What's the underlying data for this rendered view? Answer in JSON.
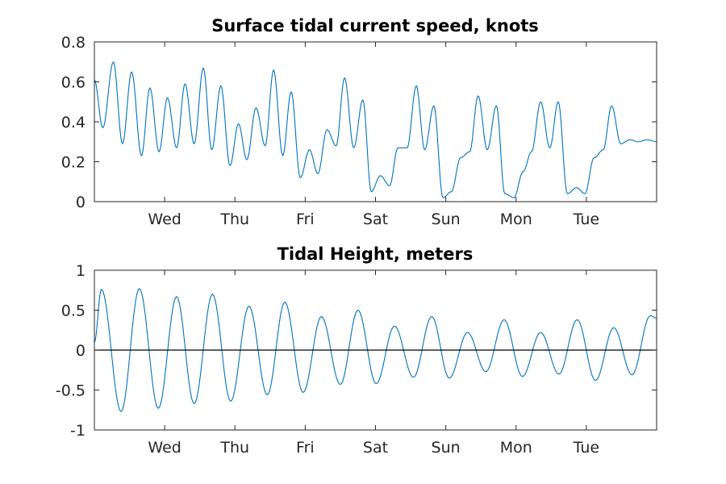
{
  "colors": {
    "series": "#0072bd",
    "axis": "#262626",
    "zero_line": "#000000",
    "background": "#ffffff"
  },
  "chart_data": [
    {
      "type": "line",
      "title": "Surface tidal current speed, knots",
      "xlabel": "",
      "ylabel": "",
      "x_unit": "days since start of record",
      "xlim": [
        0,
        8.0
      ],
      "ylim": [
        0,
        0.8
      ],
      "yticks": [
        0,
        0.2,
        0.4,
        0.6,
        0.8
      ],
      "ytick_labels": [
        "0",
        "0.2",
        "0.4",
        "0.6",
        "0.8"
      ],
      "xticks": [
        1,
        2,
        3,
        4,
        5,
        6,
        7
      ],
      "xtick_labels": [
        "Wed",
        "Thu",
        "Fri",
        "Sat",
        "Sun",
        "Mon",
        "Tue"
      ],
      "grid": false,
      "series": [
        {
          "x": [
            0,
            0.12,
            0.27,
            0.4,
            0.53,
            0.67,
            0.79,
            0.92,
            1.04,
            1.17,
            1.29,
            1.42,
            1.55,
            1.67,
            1.8,
            1.93,
            2.05,
            2.17,
            2.3,
            2.43,
            2.55,
            2.68,
            2.8,
            2.93,
            3.06,
            3.18,
            3.31,
            3.44,
            3.56,
            3.69,
            3.82,
            3.94,
            4.07,
            4.2,
            4.32,
            4.45,
            4.58,
            4.7,
            4.83,
            4.96,
            5.08,
            5.21,
            5.34,
            5.46,
            5.59,
            5.72,
            5.84,
            5.97,
            6.1,
            6.22,
            6.35,
            6.48,
            6.6,
            6.73,
            6.86,
            6.98,
            7.11,
            7.24,
            7.36,
            7.49,
            7.62,
            7.74,
            7.87,
            8.0
          ],
          "values": [
            0.61,
            0.37,
            0.7,
            0.29,
            0.65,
            0.23,
            0.57,
            0.25,
            0.52,
            0.27,
            0.59,
            0.29,
            0.67,
            0.26,
            0.58,
            0.18,
            0.39,
            0.21,
            0.47,
            0.28,
            0.66,
            0.23,
            0.55,
            0.12,
            0.26,
            0.14,
            0.36,
            0.28,
            0.62,
            0.27,
            0.51,
            0.05,
            0.13,
            0.08,
            0.27,
            0.27,
            0.58,
            0.26,
            0.48,
            0.02,
            0.05,
            0.22,
            0.25,
            0.53,
            0.26,
            0.48,
            0.04,
            0.02,
            0.15,
            0.25,
            0.5,
            0.27,
            0.5,
            0.04,
            0.07,
            0.04,
            0.22,
            0.26,
            0.48,
            0.29,
            0.31,
            0.3,
            0.31,
            0.3
          ]
        }
      ]
    },
    {
      "type": "line",
      "title": "Tidal Height, meters",
      "xlabel": "",
      "ylabel": "",
      "x_unit": "days since start of record",
      "xlim": [
        0,
        8.0
      ],
      "ylim": [
        -1,
        1
      ],
      "yticks": [
        -1,
        -0.5,
        0,
        0.5,
        1
      ],
      "ytick_labels": [
        "-1",
        "-0.5",
        "0",
        "0.5",
        "1"
      ],
      "xticks": [
        1,
        2,
        3,
        4,
        5,
        6,
        7
      ],
      "xtick_labels": [
        "Wed",
        "Thu",
        "Fri",
        "Sat",
        "Sun",
        "Mon",
        "Tue"
      ],
      "grid": false,
      "zero_line": true,
      "series": [
        {
          "extrema_x": [
            0,
            0.1,
            0.38,
            0.64,
            0.91,
            1.17,
            1.42,
            1.68,
            1.94,
            2.2,
            2.46,
            2.71,
            2.97,
            3.23,
            3.5,
            3.75,
            4.01,
            4.27,
            4.54,
            4.8,
            5.05,
            5.31,
            5.57,
            5.83,
            6.09,
            6.35,
            6.61,
            6.87,
            7.13,
            7.39,
            7.65,
            7.91,
            8.0
          ],
          "extrema_y": [
            0.1,
            0.76,
            -0.77,
            0.77,
            -0.73,
            0.67,
            -0.67,
            0.7,
            -0.64,
            0.55,
            -0.56,
            0.6,
            -0.53,
            0.42,
            -0.43,
            0.5,
            -0.42,
            0.3,
            -0.34,
            0.42,
            -0.35,
            0.22,
            -0.27,
            0.38,
            -0.33,
            0.22,
            -0.3,
            0.38,
            -0.38,
            0.28,
            -0.31,
            0.43,
            0.4
          ]
        }
      ]
    }
  ]
}
